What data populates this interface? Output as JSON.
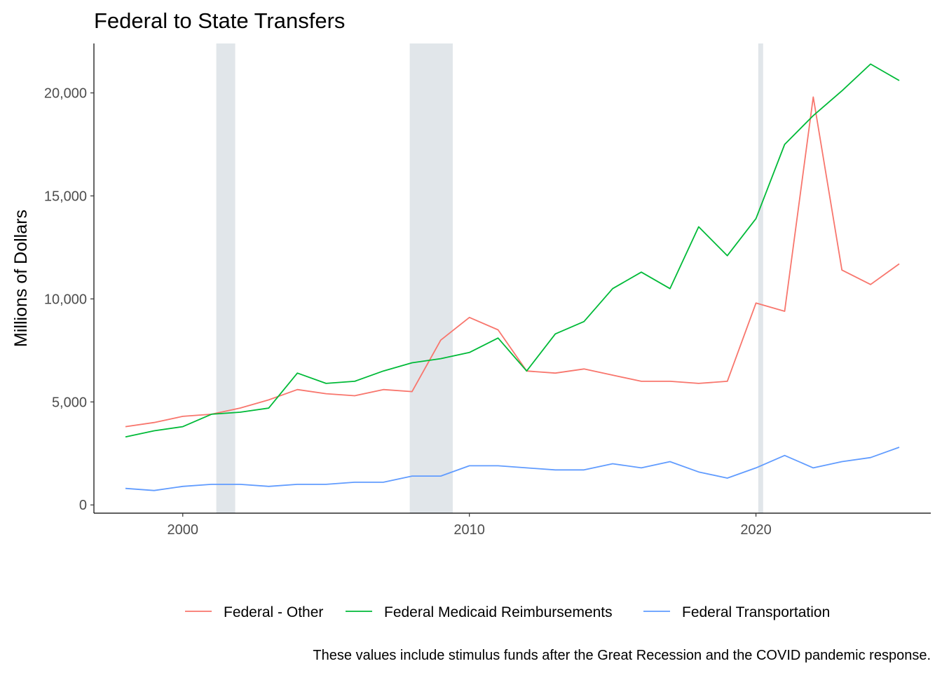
{
  "chart_data": {
    "type": "line",
    "title": "Federal to State Transfers",
    "xlabel": "",
    "ylabel": "Millions of Dollars",
    "caption": "These values include stimulus funds after the Great Recession and the COVID pandemic response.",
    "xlim": [
      1996.9,
      2026.1
    ],
    "ylim": [
      -400,
      22400
    ],
    "x_ticks": [
      2000,
      2010,
      2020
    ],
    "x_tick_labels": [
      "2000",
      "2010",
      "2020"
    ],
    "y_ticks": [
      0,
      5000,
      10000,
      15000,
      20000
    ],
    "y_tick_labels": [
      "0",
      "5,000",
      "10,000",
      "15,000",
      "20,000"
    ],
    "recession_bands": [
      {
        "start": 2001.17,
        "end": 2001.83
      },
      {
        "start": 2007.92,
        "end": 2009.42
      },
      {
        "start": 2020.08,
        "end": 2020.25
      }
    ],
    "band_color": "#e1e6ea",
    "legend_position": "bottom",
    "grid": false,
    "x": [
      1998,
      1999,
      2000,
      2001,
      2002,
      2003,
      2004,
      2005,
      2006,
      2007,
      2008,
      2009,
      2010,
      2011,
      2012,
      2013,
      2014,
      2015,
      2016,
      2017,
      2018,
      2019,
      2020,
      2021,
      2022,
      2023,
      2024,
      2025
    ],
    "series": [
      {
        "name": "Federal - Other",
        "color": "#f8766d",
        "values": [
          3800,
          4000,
          4300,
          4400,
          4700,
          5100,
          5600,
          5400,
          5300,
          5600,
          5500,
          8000,
          9100,
          8500,
          6500,
          6400,
          6600,
          6300,
          6000,
          6000,
          5900,
          6000,
          9800,
          9400,
          19800,
          11400,
          10700,
          11700
        ]
      },
      {
        "name": "Federal Medicaid Reimbursements",
        "color": "#00ba38",
        "values": [
          3300,
          3600,
          3800,
          4400,
          4500,
          4700,
          6400,
          5900,
          6000,
          6500,
          6900,
          7100,
          7400,
          8100,
          6500,
          8300,
          8900,
          10500,
          11300,
          10500,
          13500,
          12100,
          13900,
          17500,
          18900,
          20100,
          21400,
          20600
        ]
      },
      {
        "name": "Federal Transportation",
        "color": "#619cff",
        "values": [
          800,
          700,
          900,
          1000,
          1000,
          900,
          1000,
          1000,
          1100,
          1100,
          1400,
          1400,
          1900,
          1900,
          1800,
          1700,
          1700,
          2000,
          1800,
          2100,
          1600,
          1300,
          1800,
          2400,
          1800,
          2100,
          2300,
          2800
        ]
      }
    ]
  }
}
